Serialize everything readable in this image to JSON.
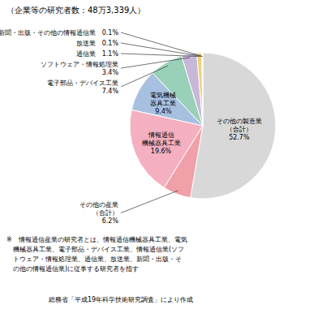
{
  "chart_data": {
    "type": "pie",
    "title": "（企業等の研究者数：48万3,339人）",
    "values": [
      52.7,
      6.2,
      19.6,
      9.4,
      7.4,
      3.4,
      1.1,
      0.1,
      0.1
    ],
    "value_labels": [
      "その他の製造業\n（合計）\n52.7%",
      "その他の産業\n（合計）\n6.2%",
      "情報通信\n機械器具工業\n19.6%",
      "電気機械\n器具工業\n9.4%",
      "電子部品・デバイス工業\n7.4%",
      "ソフトウェア・情報処理業\n3.4%",
      "通信業　1.1%",
      "放送業　0.1%",
      "新聞・出版・その他の情報通信業　0.1%"
    ],
    "colors": [
      "#d8d8d8",
      "#f0a0a8",
      "#f4b0c0",
      "#a8c0e0",
      "#98d0b8",
      "#c8b8d8",
      "#f0d080",
      "#e89040",
      "#d8c888"
    ],
    "data_labels": true,
    "annotations": [
      "※　情報通信産業の研究者とは、情報通信機械器具工業、電気\n　機械器具工業、電子部品・デバイス工業、情報通信業(ソフ\n　トウェア・情報処理業、通信業、放送業、新聞・出版・そ\n　の他の情報通信業)に従事する研究者を指す",
      "総務省「平成19年科学技術研究調査」により作成"
    ]
  }
}
